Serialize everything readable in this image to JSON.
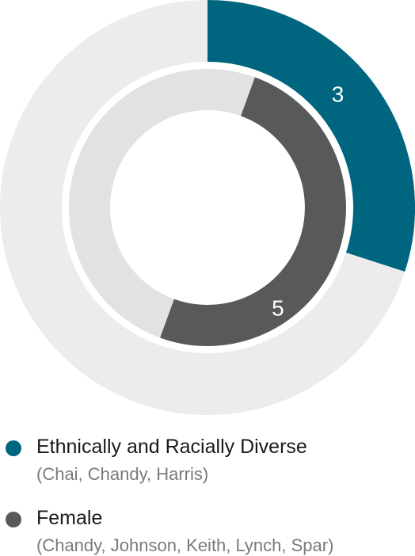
{
  "chart_data": {
    "type": "donut",
    "total": 10,
    "series": [
      {
        "name": "Ethnically and Racially Diverse",
        "members": "(Chai, Chandy, Harris)",
        "value": 3,
        "label": "3",
        "color": "#006680",
        "track_color": "#ececec"
      },
      {
        "name": "Female",
        "members": "(Chandy, Johnson, Keith, Lynch, Spar)",
        "value": 5,
        "label": "5",
        "color": "#58595b",
        "track_color": "#e1e2e4"
      }
    ]
  }
}
